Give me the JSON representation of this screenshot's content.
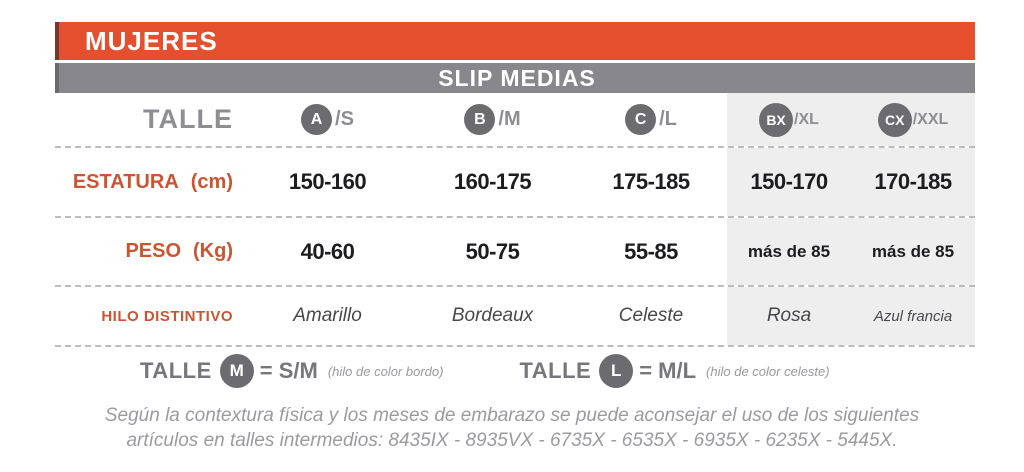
{
  "colors": {
    "header_orange": "#E4502D",
    "bar_gray": "#88878B",
    "circle_gray": "#6C6C70",
    "label_orange": "#CB5532",
    "shaded_column_bg": "#EEEEEF"
  },
  "header": {
    "title": "MUJERES"
  },
  "subheader": {
    "title": "SLIP MEDIAS"
  },
  "table": {
    "size_header": {
      "label": "TALLE",
      "sizes": [
        {
          "circle": "A",
          "suffix": "/S"
        },
        {
          "circle": "B",
          "suffix": "/M"
        },
        {
          "circle": "C",
          "suffix": "/L"
        },
        {
          "circle": "BX",
          "suffix": "/XL"
        },
        {
          "circle": "CX",
          "suffix": "/XXL"
        }
      ]
    },
    "rows": [
      {
        "label": "ESTATURA",
        "unit": "(cm)",
        "values": [
          "150-160",
          "160-175",
          "175-185",
          "150-170",
          "170-185"
        ]
      },
      {
        "label": "PESO",
        "unit": "(Kg)",
        "values": [
          "40-60",
          "50-75",
          "55-85",
          "más de 85",
          "más de 85"
        ]
      },
      {
        "label": "HILO DISTINTIVO",
        "unit": "",
        "values": [
          "Amarillo",
          "Bordeaux",
          "Celeste",
          "Rosa",
          "Azul francia"
        ]
      }
    ]
  },
  "legend": {
    "items": [
      {
        "label": "TALLE",
        "circle": "M",
        "equivalence": "= S/M",
        "note": "(hilo de color bordo)"
      },
      {
        "label": "TALLE",
        "circle": "L",
        "equivalence": "= M/L",
        "note": "(hilo de color celeste)"
      }
    ]
  },
  "footer": {
    "line1": "Según la contextura física y los meses de embarazo se puede aconsejar el uso de los siguientes",
    "line2": "artículos en talles intermedios: 8435IX - 8935VX - 6735X - 6535X - 6935X - 6235X - 5445X."
  },
  "chart_data": {
    "type": "table",
    "title": "MUJERES — SLIP MEDIAS",
    "columns": [
      "TALLE",
      "A /S",
      "B /M",
      "C /L",
      "BX /XL",
      "CX /XXL"
    ],
    "rows": [
      [
        "ESTATURA (cm)",
        "150-160",
        "160-175",
        "175-185",
        "150-170",
        "170-185"
      ],
      [
        "PESO (Kg)",
        "40-60",
        "50-75",
        "55-85",
        "más de 85",
        "más de 85"
      ],
      [
        "HILO DISTINTIVO",
        "Amarillo",
        "Bordeaux",
        "Celeste",
        "Rosa",
        "Azul francia"
      ]
    ],
    "notes": [
      "TALLE M = S/M (hilo de color bordo)",
      "TALLE L = M/L (hilo de color celeste)",
      "Según la contextura física y los meses de embarazo se puede aconsejar el uso de los siguientes artículos en talles intermedios: 8435IX - 8935VX - 6735X - 6535X - 6935X - 6235X - 5445X."
    ],
    "layout_hints": {
      "shaded_columns": [
        "BX /XL",
        "CX /XXL"
      ],
      "grid": "dashed horizontal separators"
    }
  }
}
